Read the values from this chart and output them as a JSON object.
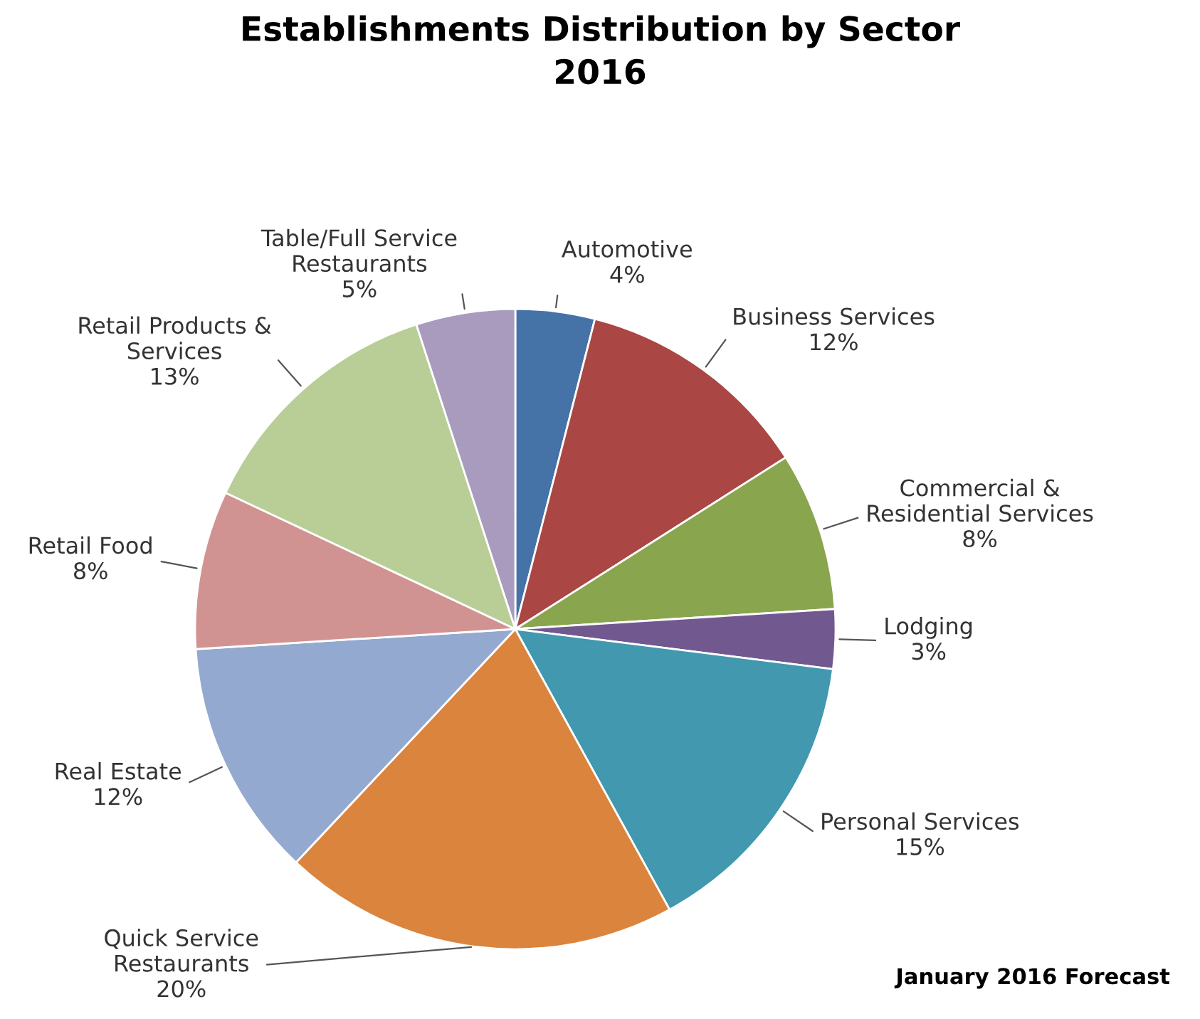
{
  "chart_data": {
    "type": "pie",
    "title": "Establishments Distribution by Sector\n2016",
    "categories": [
      "Automotive",
      "Business Services",
      "Commercial &\nResidential Services",
      "Lodging",
      "Personal Services",
      "Quick Service\nRestaurants",
      "Real Estate",
      "Retail Food",
      "Retail Products &\nServices",
      "Table/Full Service\nRestaurants"
    ],
    "values": [
      4,
      12,
      8,
      3,
      15,
      20,
      12,
      8,
      13,
      5
    ],
    "value_labels": [
      "4%",
      "12%",
      "8%",
      "3%",
      "15%",
      "20%",
      "12%",
      "8%",
      "13%",
      "5%"
    ],
    "colors": [
      "#4572a7",
      "#aa4643",
      "#89a54e",
      "#71588f",
      "#4198af",
      "#db843d",
      "#93a9cf",
      "#d19392",
      "#b9cd96",
      "#a99bbd"
    ],
    "annotations": [
      "January 2016 Forecast"
    ]
  }
}
